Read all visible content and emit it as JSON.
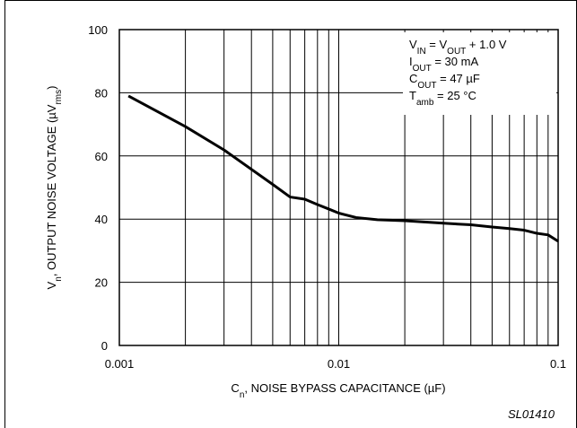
{
  "chart_data": {
    "type": "line",
    "x_label": [
      {
        "text": "C"
      },
      {
        "text": "n",
        "sub": true
      },
      {
        "text": ", NOISE BYPASS CAPACITANCE (µF)"
      }
    ],
    "y_label": [
      {
        "text": "V"
      },
      {
        "text": "n",
        "sub": true
      },
      {
        "text": ", OUTPUT NOISE VOLTAGE (µV"
      },
      {
        "text": "rms",
        "sub": true
      },
      {
        "text": ")"
      }
    ],
    "annotation": [
      [
        {
          "text": "V"
        },
        {
          "text": "IN",
          "sub": true
        },
        {
          "text": " = V"
        },
        {
          "text": "OUT",
          "sub": true
        },
        {
          "text": " + 1.0 V"
        }
      ],
      [
        {
          "text": "I"
        },
        {
          "text": "OUT",
          "sub": true
        },
        {
          "text": " = 30 mA"
        }
      ],
      [
        {
          "text": "C"
        },
        {
          "text": "OUT",
          "sub": true
        },
        {
          "text": " = 47 µF"
        }
      ],
      [
        {
          "text": "T"
        },
        {
          "text": "amb",
          "sub": true
        },
        {
          "text": " = 25 °C"
        }
      ]
    ],
    "footnote": "SL01410",
    "x": [
      0.0011,
      0.002,
      0.003,
      0.005,
      0.006,
      0.007,
      0.008,
      0.009,
      0.01,
      0.012,
      0.015,
      0.02,
      0.03,
      0.04,
      0.05,
      0.06,
      0.07,
      0.08,
      0.09,
      0.1
    ],
    "series": [
      {
        "name": "Vn",
        "color": "#000000",
        "values": [
          79,
          69.3,
          61.9,
          51,
          47,
          46.3,
          44.6,
          43.2,
          41.9,
          40.5,
          39.8,
          39.5,
          38.7,
          38.2,
          37.5,
          37,
          36.5,
          35.5,
          35,
          33
        ]
      }
    ],
    "xlim": [
      0.001,
      0.1
    ],
    "xticks": [
      0.001,
      0.01,
      0.1
    ],
    "x_log": true,
    "ylim": [
      0,
      100
    ],
    "yticks": [
      0,
      20,
      40,
      60,
      80,
      100
    ],
    "grid": true
  }
}
